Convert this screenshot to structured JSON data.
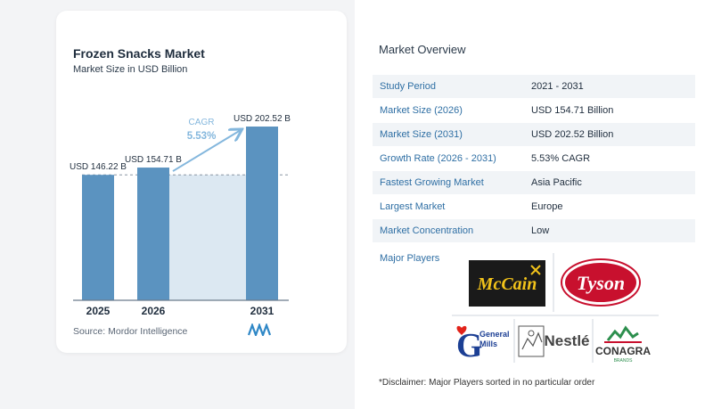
{
  "chart": {
    "title": "Frozen Snacks Market",
    "subtitle": "Market Size in USD Billion",
    "source": "Source:  Mordor Intelligence",
    "cagr_label": "CAGR",
    "cagr_value": "5.53%"
  },
  "chart_data": {
    "type": "bar",
    "categories": [
      "2025",
      "2026",
      "2031"
    ],
    "values": [
      146.22,
      154.71,
      202.52
    ],
    "data_labels": [
      "USD 146.22 B",
      "USD 154.71 B",
      "USD 202.52 B"
    ],
    "title": "Frozen Snacks Market",
    "subtitle": "Market Size in USD Billion",
    "xlabel": "",
    "ylabel": "",
    "ylim": [
      0,
      215
    ],
    "grid": false,
    "annotations": [
      "CAGR 5.53%"
    ],
    "colors": {
      "bar": "#5b93c0",
      "projection_band": "#dce8f2",
      "arrow": "#84b7dd",
      "baseline": "#6b7b8c"
    }
  },
  "overview": {
    "title": "Market Overview",
    "rows": [
      {
        "label": "Study Period",
        "value": "2021 - 2031"
      },
      {
        "label": "Market Size (2026)",
        "value": "USD 154.71 Billion"
      },
      {
        "label": "Market Size (2031)",
        "value": "USD 202.52 Billion"
      },
      {
        "label": "Growth Rate (2026 - 2031)",
        "value": "5.53% CAGR"
      },
      {
        "label": "Fastest Growing Market",
        "value": "Asia Pacific"
      },
      {
        "label": "Largest Market",
        "value": "Europe"
      },
      {
        "label": "Market Concentration",
        "value": "Low"
      }
    ],
    "major_players_label": "Major Players",
    "disclaimer": "*Disclaimer: Major Players sorted in no particular order"
  },
  "players": {
    "mccain": "McCain",
    "tyson": "Tyson",
    "general_mills": "General Mills",
    "nestle": "Nestlé",
    "conagra": "CONAGRA",
    "conagra_sub": "BRANDS"
  }
}
